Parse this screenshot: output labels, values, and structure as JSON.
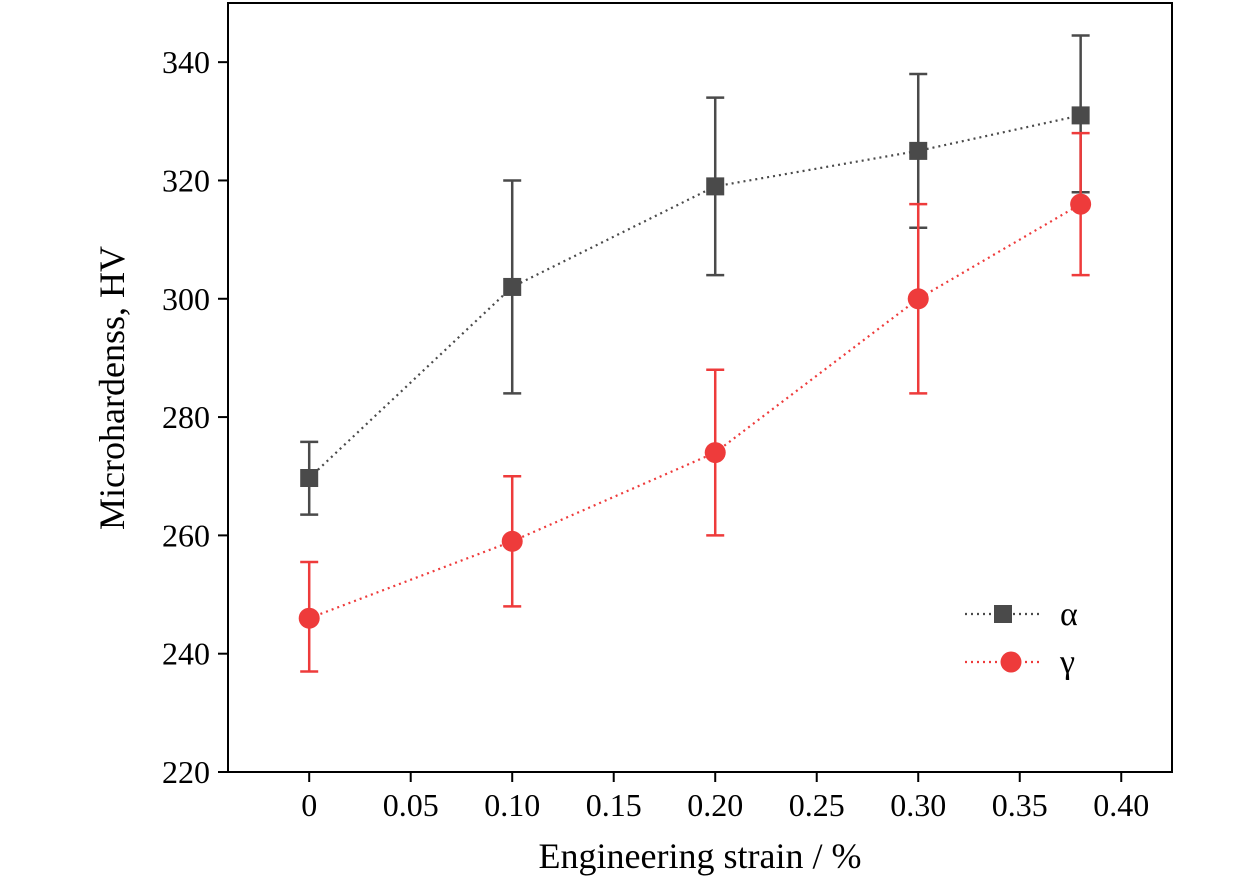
{
  "chart_data": {
    "type": "line",
    "title": "",
    "xlabel": "Engineering strain / %",
    "ylabel": "Microhardenss, HV",
    "xlim": [
      -0.04,
      0.425
    ],
    "ylim": [
      220,
      350
    ],
    "xticks": [
      0,
      0.05,
      0.1,
      0.15,
      0.2,
      0.25,
      0.3,
      0.35,
      0.4
    ],
    "xtick_labels": [
      "0",
      "0.05",
      "0.10",
      "0.15",
      "0.20",
      "0.25",
      "0.30",
      "0.35",
      "0.40"
    ],
    "yticks": [
      220,
      240,
      260,
      280,
      300,
      320,
      340
    ],
    "ytick_labels": [
      "220",
      "240",
      "260",
      "280",
      "300",
      "320",
      "340"
    ],
    "grid": false,
    "legend_position": "lower-right",
    "series": [
      {
        "name": "α",
        "color": "#4a4a4a",
        "marker": "square",
        "x": [
          0,
          0.1,
          0.2,
          0.3,
          0.38
        ],
        "y": [
          269.7,
          302,
          319,
          325,
          331
        ],
        "err_low": [
          263.5,
          284,
          304,
          312,
          318
        ],
        "err_high": [
          275.8,
          320,
          334,
          338,
          344.5
        ]
      },
      {
        "name": "γ",
        "color": "#ee3b3b",
        "marker": "circle",
        "x": [
          0,
          0.1,
          0.2,
          0.3,
          0.38
        ],
        "y": [
          246,
          259,
          274,
          300,
          316
        ],
        "err_low": [
          237,
          248,
          260,
          284,
          304
        ],
        "err_high": [
          255.5,
          270,
          288,
          316,
          328
        ]
      }
    ]
  }
}
